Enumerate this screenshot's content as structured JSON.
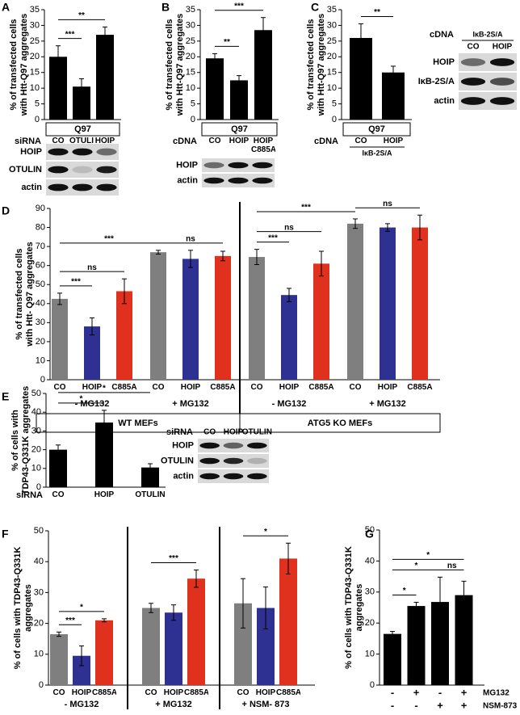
{
  "chart_data": [
    {
      "type": "bar",
      "panel": "A",
      "y_label": [
        "% of transfected cells",
        "with Htt-Q97 aggregates"
      ],
      "categories": [
        "CO",
        "OTULIN",
        "HOIP"
      ],
      "values": [
        20,
        10.5,
        27
      ],
      "errors": [
        3.5,
        2.5,
        2.5
      ],
      "color": "#000000",
      "ylim": [
        0,
        35
      ],
      "yticks": [
        0,
        5,
        10,
        15,
        20,
        25,
        30,
        35
      ],
      "significance": [
        {
          "bars": [
            0,
            1
          ],
          "label": "***"
        },
        {
          "bars": [
            0,
            2
          ],
          "label": "**"
        }
      ],
      "construct": "Q97",
      "row_label": "siRNA",
      "blot": {
        "rows": [
          "HOIP",
          "OTULIN",
          "actin"
        ]
      }
    },
    {
      "type": "bar",
      "panel": "B",
      "y_label": [
        "% of transfected cells",
        "with Htt-Q97 aggregates"
      ],
      "categories": [
        "CO",
        "HOIP",
        "HOIP C885A"
      ],
      "values": [
        19.5,
        12.5,
        28.5
      ],
      "errors": [
        1.5,
        1.5,
        4
      ],
      "color": "#000000",
      "ylim": [
        0,
        35
      ],
      "yticks": [
        0,
        5,
        10,
        15,
        20,
        25,
        30,
        35
      ],
      "significance": [
        {
          "bars": [
            0,
            1
          ],
          "label": "**"
        },
        {
          "bars": [
            0,
            2
          ],
          "label": "***"
        }
      ],
      "construct": "Q97",
      "row_label": "cDNA",
      "blot": {
        "rows": [
          "HOIP",
          "actin"
        ]
      }
    },
    {
      "type": "bar",
      "panel": "C",
      "y_label": [
        "% of transfected cells",
        "with Htt-Q97 aggregates"
      ],
      "categories": [
        "CO",
        "HOIP"
      ],
      "values": [
        26,
        15
      ],
      "errors": [
        4.5,
        2
      ],
      "color": "#000000",
      "ylim": [
        0,
        35
      ],
      "yticks": [
        0,
        5,
        10,
        15,
        20,
        25,
        30,
        35
      ],
      "significance": [
        {
          "bars": [
            0,
            1
          ],
          "label": "**"
        }
      ],
      "construct": "Q97",
      "row_label": "cDNA",
      "row_note": "IκB-2S/A",
      "blot": {
        "row_label": "cDNA",
        "header": "IκB-2S/A",
        "lanes": [
          "CO",
          "HOIP"
        ],
        "rows": [
          "HOIP",
          "IκB-2S/A",
          "actin"
        ]
      }
    },
    {
      "type": "bar",
      "panel": "D",
      "y_label": [
        "% of transfected cells",
        "with Htt- Q97 aggregates"
      ],
      "categories": [
        "CO",
        "HOIP",
        "C885A",
        "CO",
        "HOIP",
        "C885A",
        "CO",
        "HOIP",
        "C885A",
        "CO",
        "HOIP",
        "C885A"
      ],
      "values": [
        42.5,
        28,
        46.5,
        67,
        63.5,
        65,
        64.5,
        44.5,
        61,
        82,
        80,
        80
      ],
      "errors": [
        3,
        4.5,
        6.5,
        1,
        4.5,
        2.5,
        4,
        3.5,
        6.5,
        2.5,
        2,
        6.5
      ],
      "colors": [
        "#7f7f7f",
        "#2e3192",
        "#e0301e"
      ],
      "ylim": [
        0,
        90
      ],
      "yticks": [
        0,
        10,
        20,
        30,
        40,
        50,
        60,
        70,
        80,
        90
      ],
      "groups": [
        "- MG132",
        "+ MG132",
        "- MG132",
        "+ MG132"
      ],
      "cell_lines": [
        "WT MEFs",
        "ATG5 KO MEFs"
      ],
      "significance": [
        {
          "bars": [
            0,
            1
          ],
          "label": "***"
        },
        {
          "bars": [
            0,
            2
          ],
          "label": "ns"
        },
        {
          "bars": [
            0,
            3
          ],
          "label": "***"
        },
        {
          "bars": [
            3,
            5
          ],
          "label": "ns"
        },
        {
          "bars": [
            6,
            7
          ],
          "label": "***"
        },
        {
          "bars": [
            6,
            8
          ],
          "label": "ns"
        },
        {
          "bars": [
            6,
            9
          ],
          "label": "***"
        },
        {
          "bars": [
            9,
            11
          ],
          "label": "ns"
        }
      ]
    },
    {
      "type": "bar",
      "panel": "E",
      "y_label": [
        "% of cells with",
        "TDP43-Q331K aggregates"
      ],
      "categories": [
        "CO",
        "HOIP",
        "OTULIN"
      ],
      "values": [
        20,
        34.5,
        10.5
      ],
      "errors": [
        2.5,
        6.5,
        2
      ],
      "color": "#000000",
      "ylim": [
        0,
        50
      ],
      "yticks": [
        0,
        10,
        20,
        30,
        40,
        50
      ],
      "significance": [
        {
          "bars": [
            0,
            1
          ],
          "label": "*"
        },
        {
          "bars": [
            0,
            2
          ],
          "label": "*"
        }
      ],
      "row_label": "siRNA",
      "blot": {
        "row_label": "siRNA",
        "lanes": [
          "CO",
          "HOIP",
          "OTULIN"
        ],
        "rows": [
          "HOIP",
          "OTULIN",
          "actin"
        ]
      }
    },
    {
      "type": "bar",
      "panel": "F",
      "y_label": [
        "% of cells with TDP43-Q331K",
        "aggregates"
      ],
      "categories": [
        "CO",
        "HOIP",
        "C885A",
        "CO",
        "HOIP",
        "C885A",
        "CO",
        "HOIP",
        "C885A"
      ],
      "values": [
        16.5,
        9.5,
        21,
        25,
        23.5,
        34.5,
        26.5,
        25,
        41
      ],
      "errors": [
        0.7,
        3.2,
        0.5,
        1.5,
        2.5,
        2.8,
        8,
        6.8,
        5
      ],
      "colors": [
        "#7f7f7f",
        "#2e3192",
        "#e0301e"
      ],
      "ylim": [
        0,
        50
      ],
      "yticks": [
        0,
        10,
        20,
        30,
        40,
        50
      ],
      "groups": [
        "- MG132",
        "+ MG132",
        "+ NSM- 873"
      ],
      "significance": [
        {
          "bars": [
            0,
            1
          ],
          "label": "***"
        },
        {
          "bars": [
            0,
            2
          ],
          "label": "*"
        },
        {
          "bars": [
            3,
            5
          ],
          "label": "***"
        },
        {
          "bars": [
            6,
            8
          ],
          "label": "*"
        }
      ]
    },
    {
      "type": "bar",
      "panel": "G",
      "y_label": [
        "% of cells with TDP43-Q331K",
        "aggregates"
      ],
      "categories": [
        null,
        null,
        null,
        null
      ],
      "values": [
        16.5,
        25.5,
        26.8,
        29
      ],
      "errors": [
        0.8,
        1.2,
        8,
        4.5
      ],
      "color": "#000000",
      "ylim": [
        0,
        50
      ],
      "yticks": [
        0,
        10,
        20,
        30,
        40,
        50
      ],
      "conditions": [
        {
          "name": "MG132",
          "values": [
            "-",
            "+",
            "-",
            "+"
          ]
        },
        {
          "name": "NSM-873",
          "values": [
            "-",
            "-",
            "+",
            "+"
          ]
        }
      ],
      "significance": [
        {
          "bars": [
            0,
            1
          ],
          "label": "*"
        },
        {
          "bars": [
            0,
            2
          ],
          "label": "*"
        },
        {
          "bars": [
            2,
            3
          ],
          "label": "ns"
        },
        {
          "bars": [
            0,
            3
          ],
          "label": "*"
        }
      ]
    }
  ]
}
